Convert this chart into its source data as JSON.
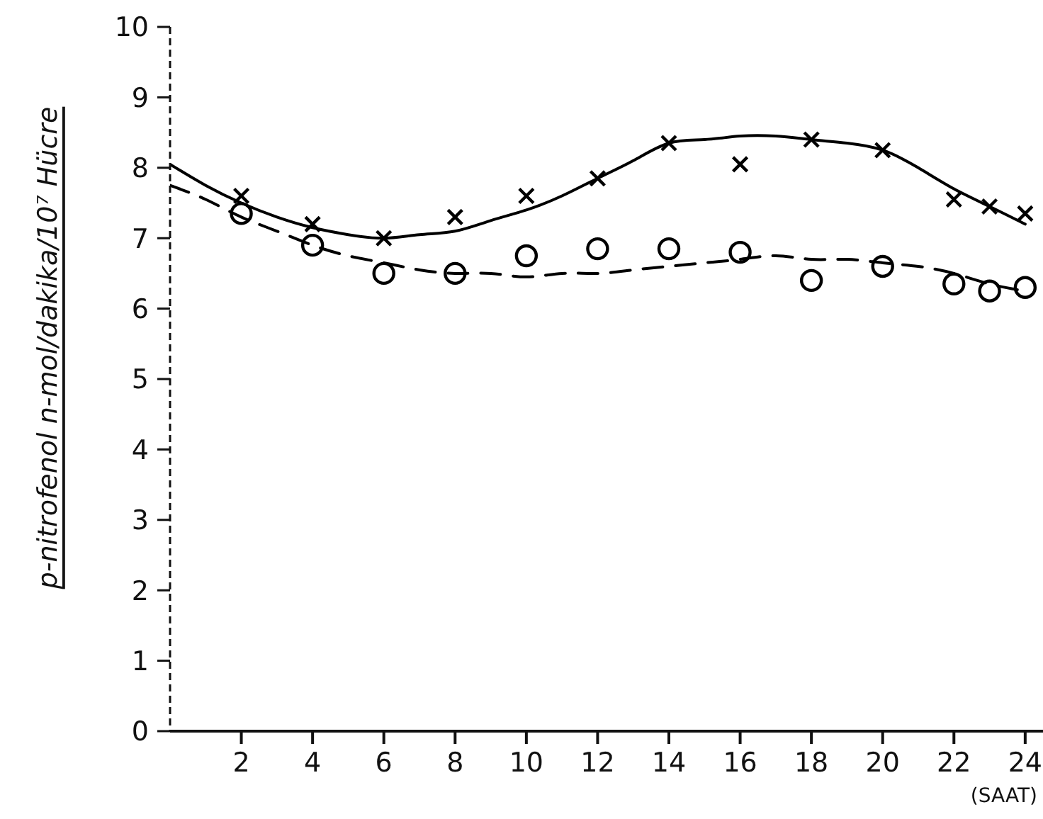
{
  "chart_data": {
    "type": "scatter",
    "ylabel": "p-nitrofenol n-mol/dakika/10⁷ Hücre",
    "xlabel": "(SAAT)",
    "xlim": [
      0,
      24.5
    ],
    "xticks": [
      2,
      4,
      6,
      8,
      10,
      12,
      14,
      16,
      18,
      20,
      22,
      24
    ],
    "ylim": [
      0,
      10
    ],
    "yticks": [
      0,
      1,
      2,
      3,
      4,
      5,
      6,
      7,
      8,
      9,
      10
    ],
    "grid": false,
    "legend": false,
    "series": [
      {
        "marker": "cross",
        "color": "#000000",
        "x": [
          2,
          4,
          6,
          8,
          10,
          12,
          14,
          16,
          18,
          20,
          22,
          23,
          24
        ],
        "values": [
          7.6,
          7.2,
          7.0,
          7.3,
          7.6,
          7.85,
          8.35,
          8.05,
          8.4,
          8.25,
          7.55,
          7.45,
          7.35
        ]
      },
      {
        "marker": "circle",
        "color": "#000000",
        "x": [
          2,
          4,
          6,
          8,
          10,
          12,
          14,
          16,
          18,
          20,
          22,
          23,
          24
        ],
        "values": [
          7.35,
          6.9,
          6.5,
          6.5,
          6.75,
          6.85,
          6.85,
          6.8,
          6.4,
          6.6,
          6.35,
          6.25,
          6.3
        ]
      },
      {
        "type": "line",
        "marker": "none",
        "line_style": "solid",
        "color": "#000000",
        "x": [
          0,
          1,
          2,
          3,
          4,
          5,
          6,
          7,
          8,
          9,
          10,
          11,
          12,
          13,
          14,
          15,
          16,
          17,
          18,
          19,
          20,
          21,
          22,
          23,
          24
        ],
        "values": [
          8.05,
          7.75,
          7.5,
          7.3,
          7.15,
          7.05,
          7.0,
          7.05,
          7.1,
          7.25,
          7.4,
          7.6,
          7.85,
          8.1,
          8.35,
          8.4,
          8.45,
          8.45,
          8.4,
          8.35,
          8.25,
          8.0,
          7.7,
          7.45,
          7.2
        ]
      },
      {
        "type": "line",
        "marker": "none",
        "line_style": "dashed",
        "color": "#000000",
        "x": [
          0,
          1,
          2,
          3,
          4,
          5,
          6,
          7,
          8,
          9,
          10,
          11,
          12,
          13,
          14,
          15,
          16,
          17,
          18,
          19,
          20,
          21,
          22,
          23,
          24
        ],
        "values": [
          7.75,
          7.55,
          7.3,
          7.1,
          6.9,
          6.75,
          6.65,
          6.55,
          6.5,
          6.5,
          6.45,
          6.5,
          6.5,
          6.55,
          6.6,
          6.65,
          6.7,
          6.75,
          6.7,
          6.7,
          6.65,
          6.6,
          6.5,
          6.35,
          6.25
        ]
      }
    ]
  }
}
